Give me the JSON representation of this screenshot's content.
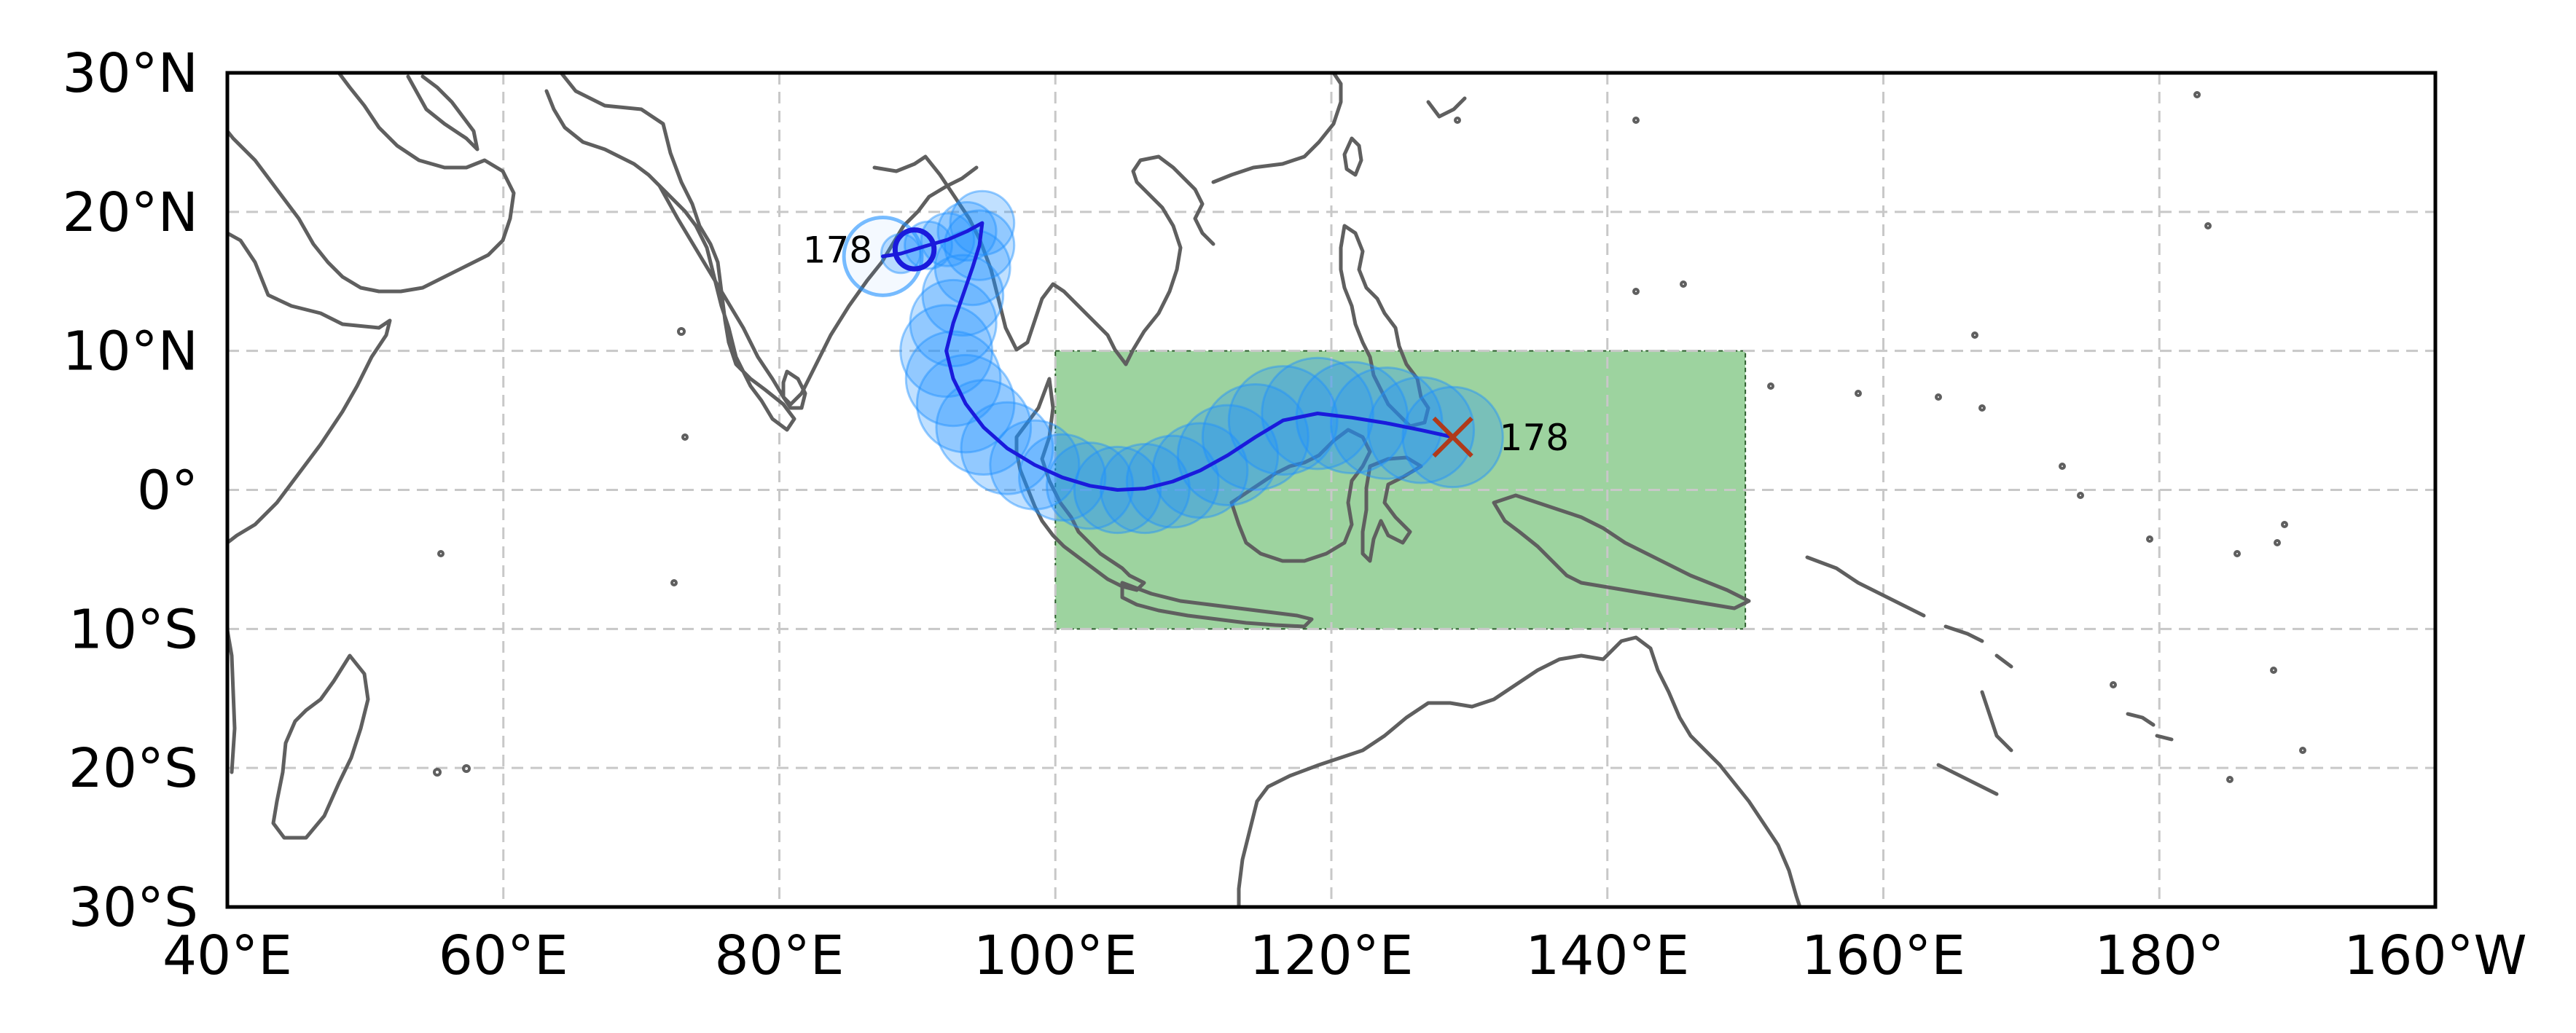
{
  "map": {
    "extent": {
      "lon_min": 40,
      "lon_max": 200,
      "lat_min": -30,
      "lat_max": 30
    },
    "gridlines": true,
    "x_ticks": [
      {
        "lon": 40,
        "label": "40°E"
      },
      {
        "lon": 60,
        "label": "60°E"
      },
      {
        "lon": 80,
        "label": "80°E"
      },
      {
        "lon": 100,
        "label": "100°E"
      },
      {
        "lon": 120,
        "label": "120°E"
      },
      {
        "lon": 140,
        "label": "140°E"
      },
      {
        "lon": 160,
        "label": "160°E"
      },
      {
        "lon": 180,
        "label": "180°"
      },
      {
        "lon": 200,
        "label": "160°W"
      }
    ],
    "y_ticks": [
      {
        "lat": 30,
        "label": "30°N"
      },
      {
        "lat": 20,
        "label": "20°N"
      },
      {
        "lat": 10,
        "label": "10°N"
      },
      {
        "lat": 0,
        "label": "0°"
      },
      {
        "lat": -10,
        "label": "10°S"
      },
      {
        "lat": -20,
        "label": "20°S"
      },
      {
        "lat": -30,
        "label": "30°S"
      }
    ],
    "region_box": {
      "lon_min": 100,
      "lon_max": 150,
      "lat_min": -10,
      "lat_max": 10,
      "color": "#4caf50"
    },
    "track": {
      "start_label": "178",
      "end_label": "178",
      "line_color": "#1a1adc",
      "circle_color": "#1e90ff",
      "end_marker_color": "#b03a1a",
      "start": {
        "lon": 128.8,
        "lat": 3.8
      },
      "end": {
        "lon": 89.8,
        "lat": 17.3
      },
      "points": [
        {
          "lon": 128.8,
          "lat": 3.8
        },
        {
          "lon": 126.5,
          "lat": 4.3
        },
        {
          "lon": 124.0,
          "lat": 4.8
        },
        {
          "lon": 121.5,
          "lat": 5.2
        },
        {
          "lon": 119.0,
          "lat": 5.5
        },
        {
          "lon": 116.5,
          "lat": 5.0
        },
        {
          "lon": 114.5,
          "lat": 3.8
        },
        {
          "lon": 112.5,
          "lat": 2.5
        },
        {
          "lon": 110.5,
          "lat": 1.4
        },
        {
          "lon": 108.5,
          "lat": 0.6
        },
        {
          "lon": 106.5,
          "lat": 0.1
        },
        {
          "lon": 104.5,
          "lat": 0.0
        },
        {
          "lon": 102.5,
          "lat": 0.3
        },
        {
          "lon": 100.5,
          "lat": 0.9
        },
        {
          "lon": 98.5,
          "lat": 1.8
        },
        {
          "lon": 96.5,
          "lat": 3.0
        },
        {
          "lon": 94.8,
          "lat": 4.5
        },
        {
          "lon": 93.5,
          "lat": 6.2
        },
        {
          "lon": 92.6,
          "lat": 8.0
        },
        {
          "lon": 92.1,
          "lat": 10.0
        },
        {
          "lon": 92.6,
          "lat": 12.0
        },
        {
          "lon": 93.3,
          "lat": 14.0
        },
        {
          "lon": 94.0,
          "lat": 16.0
        },
        {
          "lon": 94.5,
          "lat": 17.6
        },
        {
          "lon": 94.7,
          "lat": 19.2
        },
        {
          "lon": 93.6,
          "lat": 18.6
        },
        {
          "lon": 92.2,
          "lat": 18.0
        },
        {
          "lon": 90.8,
          "lat": 17.6
        },
        {
          "lon": 89.8,
          "lat": 17.3
        },
        {
          "lon": 88.8,
          "lat": 17.0
        },
        {
          "lon": 87.5,
          "lat": 16.8
        }
      ],
      "circle_radii_deg": [
        3.6,
        3.8,
        4.0,
        4.0,
        4.0,
        3.9,
        3.8,
        3.6,
        3.4,
        3.3,
        3.2,
        3.1,
        3.1,
        3.1,
        3.2,
        3.3,
        3.4,
        3.5,
        3.4,
        3.3,
        3.1,
        2.9,
        2.7,
        2.5,
        2.3,
        2.1,
        1.9,
        1.7,
        1.5,
        1.4,
        2.8
      ]
    }
  }
}
